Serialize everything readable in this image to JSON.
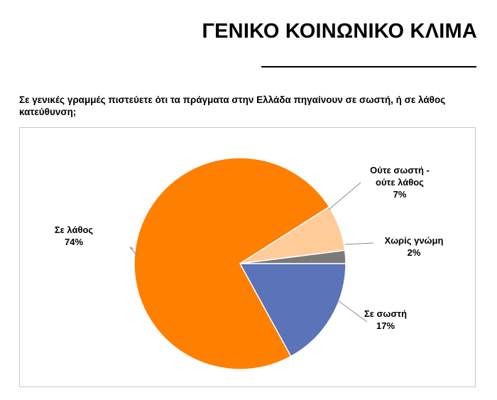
{
  "header": {
    "title": "ΓΕΝΙΚΟ ΚΟΙΝΩΝΙΚΟ ΚΛΙΜΑ"
  },
  "question": "Σε γενικές γραμμές πιστεύετε ότι τα πράγματα στην Ελλάδα πηγαίνουν σε σωστή, ή σε λάθος κατεύθυνση;",
  "chart_data": {
    "type": "pie",
    "slices": [
      {
        "label": [
          "Σε σωστή"
        ],
        "value_label": "17%",
        "value": 17,
        "color": "#5a73b9"
      },
      {
        "label": [
          "Σε λάθος"
        ],
        "value_label": "74%",
        "value": 74,
        "color": "#ff7f00"
      },
      {
        "label": [
          "Ούτε σωστή -",
          "ούτε λάθος"
        ],
        "value_label": "7%",
        "value": 7,
        "color": "#ffcc99"
      },
      {
        "label": [
          "Χωρίς γνώμη"
        ],
        "value_label": "2%",
        "value": 2,
        "color": "#7a7a7a"
      }
    ],
    "legend": "none",
    "data_labels": "outside-with-leaders"
  }
}
